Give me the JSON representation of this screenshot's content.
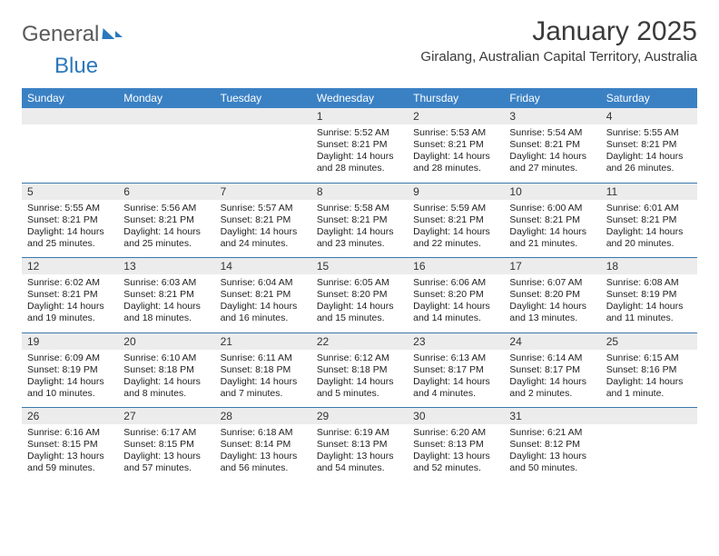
{
  "logo": {
    "text1": "General",
    "text2": "Blue"
  },
  "title": "January 2025",
  "location": "Giralang, Australian Capital Territory, Australia",
  "colors": {
    "header_bg": "#3a81c4",
    "rule": "#3a79ad",
    "daynum_bg": "#ececec",
    "logo_accent": "#2b78bd",
    "text": "#222222"
  },
  "dow": [
    "Sunday",
    "Monday",
    "Tuesday",
    "Wednesday",
    "Thursday",
    "Friday",
    "Saturday"
  ],
  "weeks": [
    {
      "nums": [
        "",
        "",
        "",
        "1",
        "2",
        "3",
        "4"
      ],
      "sunrise": [
        "",
        "",
        "",
        "Sunrise: 5:52 AM",
        "Sunrise: 5:53 AM",
        "Sunrise: 5:54 AM",
        "Sunrise: 5:55 AM"
      ],
      "sunset": [
        "",
        "",
        "",
        "Sunset: 8:21 PM",
        "Sunset: 8:21 PM",
        "Sunset: 8:21 PM",
        "Sunset: 8:21 PM"
      ],
      "day_a": [
        "",
        "",
        "",
        "Daylight: 14 hours",
        "Daylight: 14 hours",
        "Daylight: 14 hours",
        "Daylight: 14 hours"
      ],
      "day_b": [
        "",
        "",
        "",
        "and 28 minutes.",
        "and 28 minutes.",
        "and 27 minutes.",
        "and 26 minutes."
      ]
    },
    {
      "nums": [
        "5",
        "6",
        "7",
        "8",
        "9",
        "10",
        "11"
      ],
      "sunrise": [
        "Sunrise: 5:55 AM",
        "Sunrise: 5:56 AM",
        "Sunrise: 5:57 AM",
        "Sunrise: 5:58 AM",
        "Sunrise: 5:59 AM",
        "Sunrise: 6:00 AM",
        "Sunrise: 6:01 AM"
      ],
      "sunset": [
        "Sunset: 8:21 PM",
        "Sunset: 8:21 PM",
        "Sunset: 8:21 PM",
        "Sunset: 8:21 PM",
        "Sunset: 8:21 PM",
        "Sunset: 8:21 PM",
        "Sunset: 8:21 PM"
      ],
      "day_a": [
        "Daylight: 14 hours",
        "Daylight: 14 hours",
        "Daylight: 14 hours",
        "Daylight: 14 hours",
        "Daylight: 14 hours",
        "Daylight: 14 hours",
        "Daylight: 14 hours"
      ],
      "day_b": [
        "and 25 minutes.",
        "and 25 minutes.",
        "and 24 minutes.",
        "and 23 minutes.",
        "and 22 minutes.",
        "and 21 minutes.",
        "and 20 minutes."
      ]
    },
    {
      "nums": [
        "12",
        "13",
        "14",
        "15",
        "16",
        "17",
        "18"
      ],
      "sunrise": [
        "Sunrise: 6:02 AM",
        "Sunrise: 6:03 AM",
        "Sunrise: 6:04 AM",
        "Sunrise: 6:05 AM",
        "Sunrise: 6:06 AM",
        "Sunrise: 6:07 AM",
        "Sunrise: 6:08 AM"
      ],
      "sunset": [
        "Sunset: 8:21 PM",
        "Sunset: 8:21 PM",
        "Sunset: 8:21 PM",
        "Sunset: 8:20 PM",
        "Sunset: 8:20 PM",
        "Sunset: 8:20 PM",
        "Sunset: 8:19 PM"
      ],
      "day_a": [
        "Daylight: 14 hours",
        "Daylight: 14 hours",
        "Daylight: 14 hours",
        "Daylight: 14 hours",
        "Daylight: 14 hours",
        "Daylight: 14 hours",
        "Daylight: 14 hours"
      ],
      "day_b": [
        "and 19 minutes.",
        "and 18 minutes.",
        "and 16 minutes.",
        "and 15 minutes.",
        "and 14 minutes.",
        "and 13 minutes.",
        "and 11 minutes."
      ]
    },
    {
      "nums": [
        "19",
        "20",
        "21",
        "22",
        "23",
        "24",
        "25"
      ],
      "sunrise": [
        "Sunrise: 6:09 AM",
        "Sunrise: 6:10 AM",
        "Sunrise: 6:11 AM",
        "Sunrise: 6:12 AM",
        "Sunrise: 6:13 AM",
        "Sunrise: 6:14 AM",
        "Sunrise: 6:15 AM"
      ],
      "sunset": [
        "Sunset: 8:19 PM",
        "Sunset: 8:18 PM",
        "Sunset: 8:18 PM",
        "Sunset: 8:18 PM",
        "Sunset: 8:17 PM",
        "Sunset: 8:17 PM",
        "Sunset: 8:16 PM"
      ],
      "day_a": [
        "Daylight: 14 hours",
        "Daylight: 14 hours",
        "Daylight: 14 hours",
        "Daylight: 14 hours",
        "Daylight: 14 hours",
        "Daylight: 14 hours",
        "Daylight: 14 hours"
      ],
      "day_b": [
        "and 10 minutes.",
        "and 8 minutes.",
        "and 7 minutes.",
        "and 5 minutes.",
        "and 4 minutes.",
        "and 2 minutes.",
        "and 1 minute."
      ]
    },
    {
      "nums": [
        "26",
        "27",
        "28",
        "29",
        "30",
        "31",
        ""
      ],
      "sunrise": [
        "Sunrise: 6:16 AM",
        "Sunrise: 6:17 AM",
        "Sunrise: 6:18 AM",
        "Sunrise: 6:19 AM",
        "Sunrise: 6:20 AM",
        "Sunrise: 6:21 AM",
        ""
      ],
      "sunset": [
        "Sunset: 8:15 PM",
        "Sunset: 8:15 PM",
        "Sunset: 8:14 PM",
        "Sunset: 8:13 PM",
        "Sunset: 8:13 PM",
        "Sunset: 8:12 PM",
        ""
      ],
      "day_a": [
        "Daylight: 13 hours",
        "Daylight: 13 hours",
        "Daylight: 13 hours",
        "Daylight: 13 hours",
        "Daylight: 13 hours",
        "Daylight: 13 hours",
        ""
      ],
      "day_b": [
        "and 59 minutes.",
        "and 57 minutes.",
        "and 56 minutes.",
        "and 54 minutes.",
        "and 52 minutes.",
        "and 50 minutes.",
        ""
      ]
    }
  ]
}
